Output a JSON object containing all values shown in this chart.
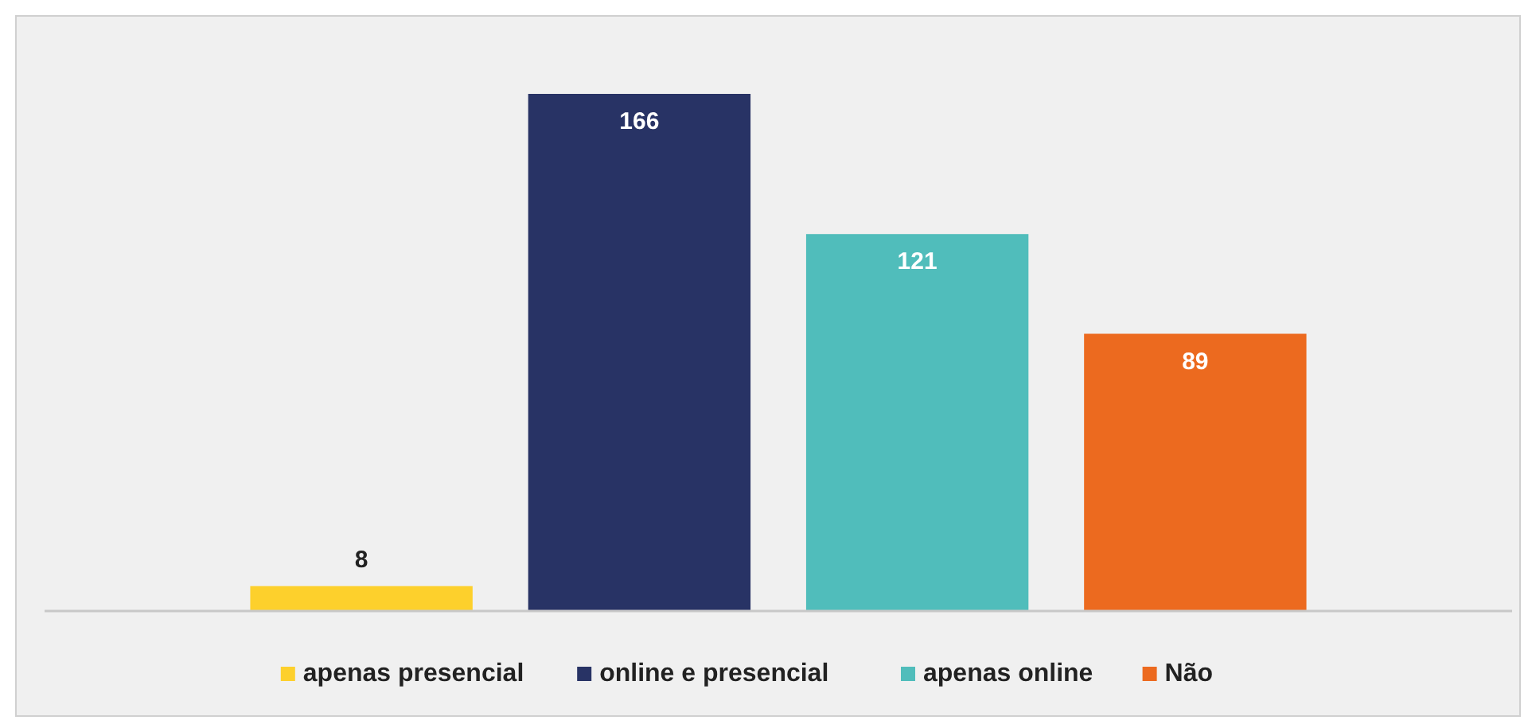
{
  "chart_data": {
    "type": "bar",
    "categories": [
      null
    ],
    "series": [
      {
        "name": "apenas presencial",
        "color": "#fdd02c",
        "values": [
          8
        ]
      },
      {
        "name": "online e presencial",
        "color": "#283365",
        "values": [
          166
        ]
      },
      {
        "name": "apenas online",
        "color": "#50bdbb",
        "values": [
          121
        ]
      },
      {
        "name": "Não",
        "color": "#ec6a1f",
        "values": [
          89
        ]
      }
    ],
    "data_labels": true,
    "legend": "bottom"
  }
}
